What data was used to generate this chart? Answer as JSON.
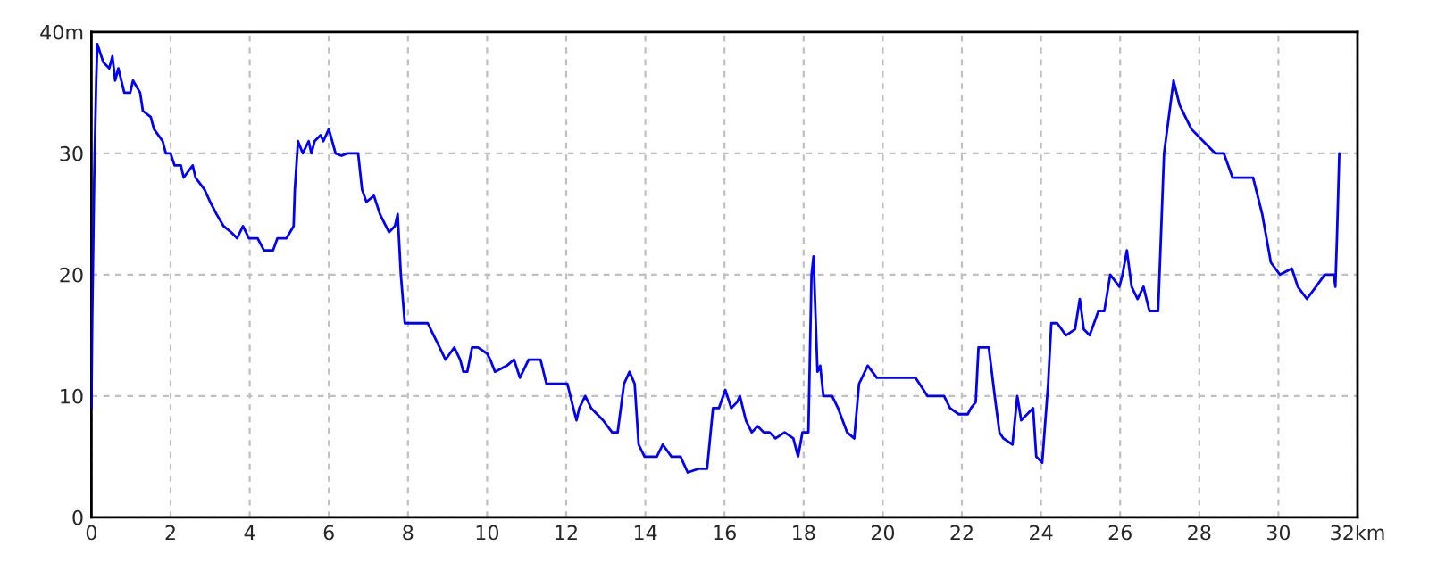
{
  "chart_data": {
    "type": "line",
    "xlim": [
      0,
      32
    ],
    "ylim": [
      0,
      40
    ],
    "xticks": [
      0,
      2,
      4,
      6,
      8,
      10,
      12,
      14,
      16,
      18,
      20,
      22,
      24,
      26,
      28,
      30,
      {
        "value": 32,
        "label": "32km"
      }
    ],
    "yticks": [
      0,
      10,
      20,
      30,
      {
        "value": 40,
        "label": "40m"
      }
    ],
    "grid": true,
    "marker": "none",
    "line_style": "solid",
    "series": [
      {
        "color": "#0000ff",
        "x": [
          0,
          0.02,
          0.07,
          0.12,
          0.15,
          0.3,
          0.45,
          0.53,
          0.6,
          0.68,
          0.83,
          0.98,
          1.05,
          1.23,
          1.3,
          1.5,
          1.58,
          1.8,
          1.88,
          2.0,
          2.1,
          2.26,
          2.33,
          2.56,
          2.63,
          2.86,
          3.0,
          3.16,
          3.34,
          3.53,
          3.68,
          3.83,
          3.98,
          4.2,
          4.36,
          4.59,
          4.7,
          4.93,
          5.11,
          5.14,
          5.22,
          5.34,
          5.49,
          5.56,
          5.64,
          5.79,
          5.86,
          6.0,
          6.17,
          6.32,
          6.47,
          6.74,
          6.84,
          6.95,
          7.14,
          7.29,
          7.52,
          7.67,
          7.74,
          7.82,
          7.92,
          8.5,
          8.65,
          8.8,
          8.95,
          9.17,
          9.32,
          9.4,
          9.5,
          9.62,
          9.77,
          10.0,
          10.08,
          10.2,
          10.5,
          10.68,
          10.83,
          11.05,
          11.35,
          11.5,
          12.03,
          12.18,
          12.26,
          12.33,
          12.48,
          12.63,
          12.93,
          13.16,
          13.3,
          13.46,
          13.6,
          13.73,
          13.83,
          13.98,
          14.29,
          14.44,
          14.66,
          14.89,
          15.07,
          15.34,
          15.56,
          15.71,
          15.86,
          16.02,
          16.17,
          16.32,
          16.39,
          16.54,
          16.69,
          16.84,
          16.99,
          17.14,
          17.29,
          17.52,
          17.74,
          17.86,
          17.97,
          18.12,
          18.2,
          18.25,
          18.35,
          18.42,
          18.5,
          18.72,
          18.87,
          19.1,
          19.28,
          19.4,
          19.62,
          19.85,
          20.3,
          20.83,
          21.13,
          21.55,
          21.7,
          21.92,
          22.15,
          22.23,
          22.35,
          22.42,
          22.68,
          22.83,
          22.95,
          23.05,
          23.28,
          23.4,
          23.5,
          23.8,
          23.88,
          24.03,
          24.18,
          24.26,
          24.41,
          24.63,
          24.86,
          24.98,
          25.08,
          25.23,
          25.45,
          25.6,
          25.75,
          25.98,
          26.06,
          26.17,
          26.29,
          26.44,
          26.59,
          26.74,
          26.96,
          27.11,
          27.19,
          27.35,
          27.5,
          27.65,
          27.8,
          28.1,
          28.4,
          28.62,
          28.84,
          29.36,
          29.59,
          29.81,
          30.04,
          30.34,
          30.49,
          30.72,
          30.95,
          31.17,
          31.4,
          31.44,
          31.48,
          31.54
        ],
        "values": [
          9,
          16.5,
          28,
          36,
          39,
          37.5,
          37,
          38,
          36,
          37,
          35,
          35,
          36,
          35,
          33.5,
          33,
          32,
          31,
          30,
          30,
          29,
          29,
          28,
          29,
          28,
          27,
          26,
          25,
          24,
          23.5,
          23,
          24,
          23,
          23,
          22,
          22,
          23,
          23,
          24,
          27,
          31,
          30,
          31,
          30,
          31,
          31.5,
          31,
          32,
          30,
          29.8,
          30,
          30,
          27,
          26,
          26.5,
          25,
          23.5,
          24,
          25,
          20,
          16,
          16,
          15,
          14,
          13,
          14,
          13,
          12,
          12,
          14,
          14,
          13.5,
          13,
          12,
          12.5,
          13,
          11.5,
          13,
          13,
          11,
          11,
          9,
          8,
          9,
          10,
          9,
          8,
          7,
          7,
          11,
          12,
          11,
          6,
          5,
          5,
          6,
          5,
          5,
          3.7,
          4,
          4,
          9,
          9,
          10.5,
          9,
          9.5,
          10,
          8,
          7,
          7.5,
          7,
          7,
          6.5,
          7,
          6.5,
          5,
          7,
          7,
          20,
          21.5,
          12,
          12.5,
          10,
          10,
          9,
          7,
          6.5,
          11,
          12.5,
          11.5,
          11.5,
          11.5,
          10,
          10,
          9,
          8.5,
          8.5,
          9,
          9.5,
          14,
          14,
          10,
          7,
          6.5,
          6,
          10,
          8,
          9,
          5,
          4.5,
          11,
          16,
          16,
          15,
          15.5,
          18,
          15.5,
          15,
          17,
          17,
          20,
          19,
          20,
          22,
          19,
          18,
          19,
          17,
          17,
          30,
          32,
          36,
          34,
          33,
          32,
          31,
          30,
          30,
          28,
          28,
          25,
          21,
          20,
          20.5,
          19,
          18,
          19,
          20,
          20,
          19,
          23,
          30
        ]
      }
    ]
  }
}
